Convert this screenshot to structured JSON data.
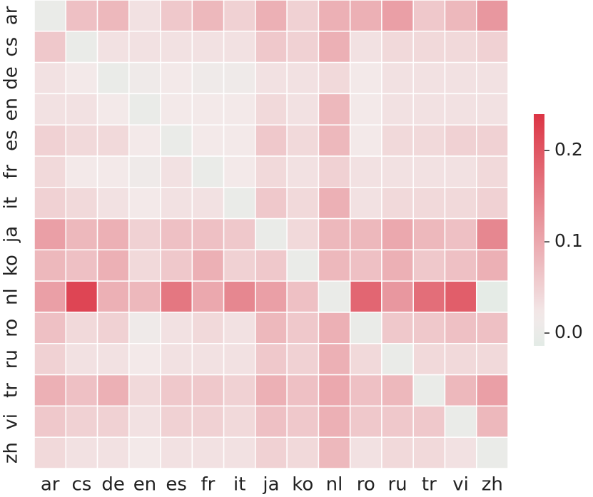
{
  "chart_data": {
    "type": "heatmap",
    "x_categories": [
      "ar",
      "cs",
      "de",
      "en",
      "es",
      "fr",
      "it",
      "ja",
      "ko",
      "nl",
      "ro",
      "ru",
      "tr",
      "vi",
      "zh"
    ],
    "y_categories": [
      "ar",
      "cs",
      "de",
      "en",
      "es",
      "fr",
      "it",
      "ja",
      "ko",
      "nl",
      "ro",
      "ru",
      "tr",
      "vi",
      "zh"
    ],
    "z": [
      [
        0,
        0.07,
        0.08,
        0.03,
        0.06,
        0.08,
        0.05,
        0.09,
        0.05,
        0.09,
        0.09,
        0.11,
        0.06,
        0.08,
        0.12
      ],
      [
        0.06,
        0,
        0.03,
        0.03,
        0.03,
        0.03,
        0.03,
        0.06,
        0.05,
        0.09,
        0.03,
        0.04,
        0.04,
        0.04,
        0.05
      ],
      [
        0.03,
        0.02,
        0,
        0.01,
        0.02,
        0.01,
        0.01,
        0.03,
        0.03,
        0.04,
        0.02,
        0.03,
        0.03,
        0.03,
        0.03
      ],
      [
        0.03,
        0.03,
        0.02,
        0,
        0.02,
        0.02,
        0.02,
        0.04,
        0.03,
        0.08,
        0.02,
        0.03,
        0.03,
        0.03,
        0.03
      ],
      [
        0.05,
        0.04,
        0.04,
        0.02,
        0,
        0.02,
        0.02,
        0.06,
        0.04,
        0.08,
        0.02,
        0.04,
        0.04,
        0.05,
        0.05
      ],
      [
        0.04,
        0.02,
        0.02,
        0.01,
        0.03,
        0,
        0.02,
        0.04,
        0.03,
        0.05,
        0.03,
        0.03,
        0.03,
        0.03,
        0.04
      ],
      [
        0.05,
        0.04,
        0.03,
        0.02,
        0.03,
        0.03,
        0,
        0.06,
        0.04,
        0.09,
        0.03,
        0.04,
        0.04,
        0.04,
        0.05
      ],
      [
        0.11,
        0.08,
        0.09,
        0.05,
        0.07,
        0.07,
        0.06,
        0,
        0.04,
        0.08,
        0.08,
        0.1,
        0.08,
        0.07,
        0.14
      ],
      [
        0.08,
        0.07,
        0.09,
        0.04,
        0.06,
        0.09,
        0.05,
        0.06,
        0,
        0.08,
        0.07,
        0.09,
        0.06,
        0.07,
        0.09
      ],
      [
        0.11,
        0.22,
        0.09,
        0.08,
        0.16,
        0.1,
        0.14,
        0.11,
        0.07,
        0,
        0.18,
        0.12,
        0.17,
        0.19,
        -0.01
      ],
      [
        0.07,
        0.04,
        0.05,
        0.01,
        0.03,
        0.04,
        0.03,
        0.08,
        0.06,
        0.09,
        0,
        0.06,
        0.06,
        0.07,
        0.07
      ],
      [
        0.05,
        0.03,
        0.03,
        0.02,
        0.03,
        0.03,
        0.03,
        0.06,
        0.05,
        0.09,
        0.04,
        0,
        0.04,
        0.04,
        0.04
      ],
      [
        0.09,
        0.07,
        0.09,
        0.04,
        0.06,
        0.06,
        0.05,
        0.09,
        0.07,
        0.1,
        0.07,
        0.08,
        0,
        0.08,
        0.11
      ],
      [
        0.06,
        0.05,
        0.05,
        0.03,
        0.05,
        0.05,
        0.04,
        0.07,
        0.06,
        0.09,
        0.06,
        0.06,
        0.06,
        0,
        0.08
      ],
      [
        0.04,
        0.03,
        0.03,
        0.02,
        0.03,
        0.03,
        0.03,
        0.05,
        0.04,
        0.08,
        0.03,
        0.04,
        0.04,
        0.03,
        0
      ]
    ],
    "clim": [
      -0.014,
      0.24
    ],
    "cticks": [
      {
        "value": 0,
        "label": "0.0"
      },
      0.1,
      0.2
    ],
    "colors": [
      "#e3ebe6",
      "#f3eaea",
      "#dc3545"
    ]
  }
}
